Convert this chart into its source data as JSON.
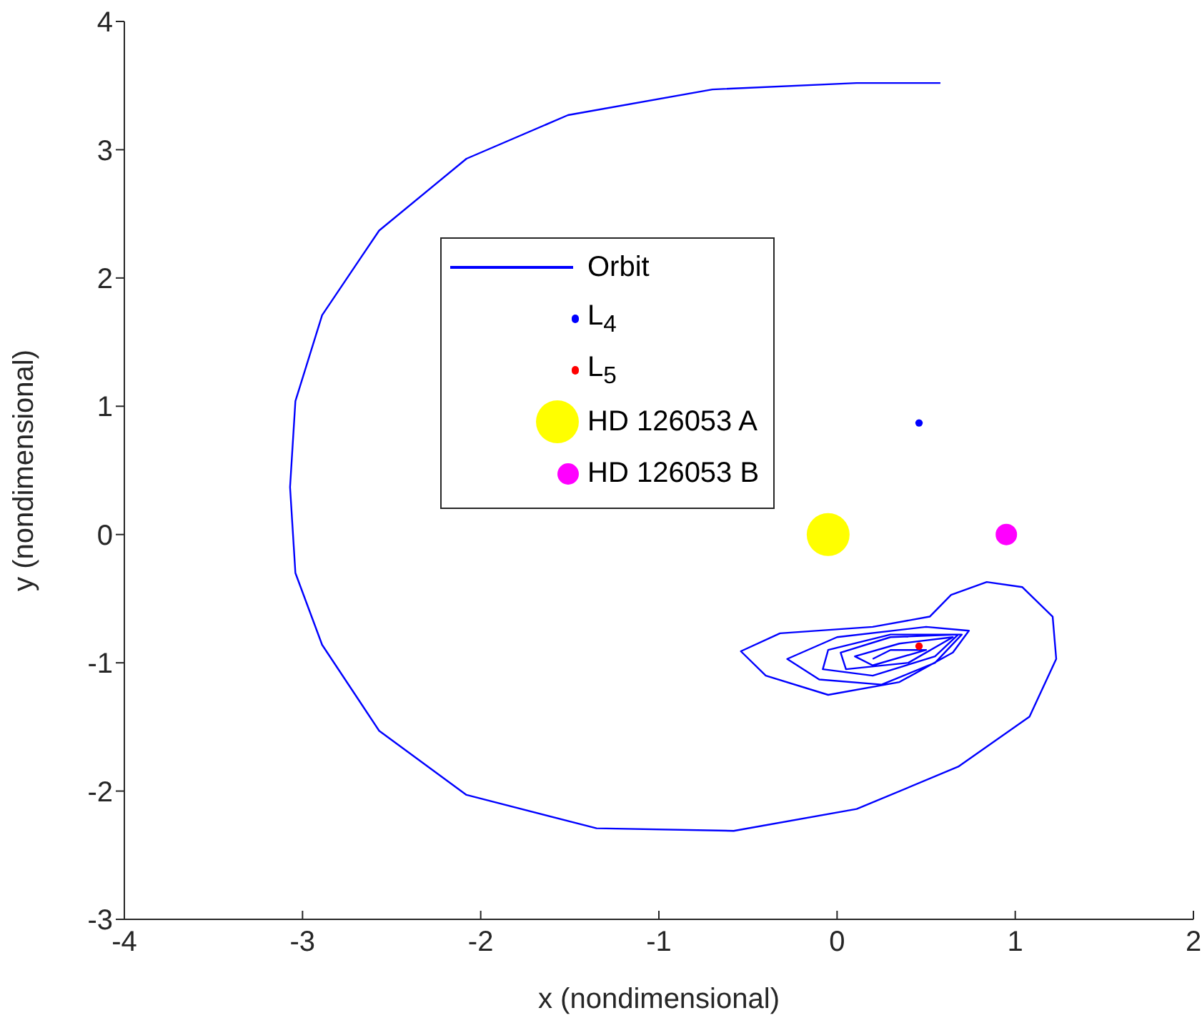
{
  "chart_data": {
    "type": "line",
    "xlabel": "x (nondimensional)",
    "ylabel": "y (nondimensional)",
    "xlim": [
      -4,
      2
    ],
    "xticks": [
      -4,
      -3,
      -2,
      -1,
      0,
      1,
      2
    ],
    "ylim": [
      -3,
      4
    ],
    "yticks": [
      -3,
      -2,
      -1,
      0,
      1,
      2,
      3,
      4
    ],
    "grid": false,
    "legend": "top left",
    "series": [
      {
        "name": "Orbit",
        "color": "#0000ff",
        "x": [
          0.58,
          0.11,
          -0.7,
          -1.51,
          -2.08,
          -2.57,
          -2.89,
          -3.04,
          -3.07,
          -3.04,
          -2.89,
          -2.57,
          -2.08,
          -1.35,
          -0.58,
          0.11,
          0.68,
          1.08,
          1.23,
          1.21,
          1.04,
          0.84,
          0.64,
          0.52,
          0.2,
          -0.32,
          -0.54,
          -0.4,
          -0.05,
          0.35,
          0.65,
          0.74,
          0.5,
          0.0,
          -0.28,
          -0.1,
          0.25,
          0.55,
          0.7,
          0.3,
          -0.05,
          -0.08,
          0.2,
          0.55,
          0.68,
          0.3,
          0.02,
          0.05,
          0.4,
          0.65,
          0.35,
          0.1,
          0.2,
          0.5,
          0.3,
          0.2
        ],
        "values": [
          3.52,
          3.52,
          3.47,
          3.27,
          2.93,
          2.37,
          1.71,
          1.04,
          0.37,
          -0.3,
          -0.86,
          -1.53,
          -2.03,
          -2.29,
          -2.31,
          -2.14,
          -1.81,
          -1.42,
          -0.97,
          -0.64,
          -0.41,
          -0.37,
          -0.47,
          -0.64,
          -0.72,
          -0.77,
          -0.91,
          -1.1,
          -1.25,
          -1.15,
          -0.92,
          -0.75,
          -0.72,
          -0.8,
          -0.97,
          -1.13,
          -1.17,
          -1.0,
          -0.78,
          -0.78,
          -0.9,
          -1.05,
          -1.1,
          -0.95,
          -0.78,
          -0.8,
          -0.92,
          -1.05,
          -1.0,
          -0.8,
          -0.85,
          -0.95,
          -1.02,
          -0.9,
          -0.9,
          -0.97
        ]
      },
      {
        "name": "L$_{4}$",
        "type": "bubble",
        "color": "#0000ff",
        "x": [
          0.46
        ],
        "values": [
          0.87
        ],
        "sizes": [
          0.03
        ]
      },
      {
        "name": "L$_{5}$",
        "type": "bubble",
        "color": "#ff0000",
        "x": [
          0.46
        ],
        "values": [
          -0.87
        ],
        "sizes": [
          0.03
        ]
      },
      {
        "name": "HD 126053 A",
        "type": "bubble",
        "color": "#ffff00",
        "x": [
          -0.05
        ],
        "values": [
          0
        ],
        "sizes": [
          1
        ]
      },
      {
        "name": "HD 126053 B",
        "type": "bubble",
        "color": "#ff00ff",
        "x": [
          0.95
        ],
        "values": [
          0
        ],
        "sizes": [
          0.25
        ]
      }
    ]
  }
}
